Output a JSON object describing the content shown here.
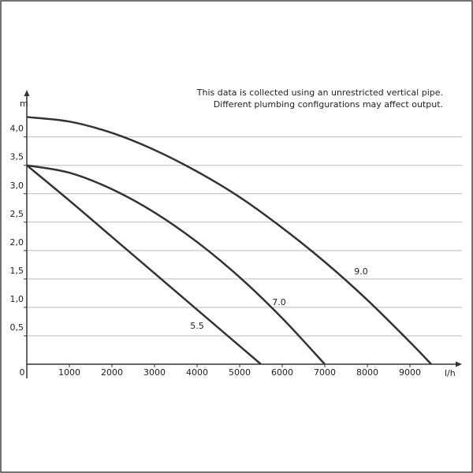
{
  "chart_data": {
    "type": "line",
    "note": [
      "This data is collected using an unrestricted vertical pipe.",
      "Different plumbing configurations may affect output."
    ],
    "y_label": "m",
    "x_label": "l/h",
    "xlim": [
      0,
      10000
    ],
    "ylim": [
      0,
      4.8
    ],
    "xticks": [
      0,
      1000,
      2000,
      3000,
      4000,
      5000,
      6000,
      7000,
      8000,
      9000
    ],
    "yticks": [
      {
        "value": 0.5,
        "label": "0,5"
      },
      {
        "value": 1,
        "label": "1,0"
      },
      {
        "value": 1.5,
        "label": "1,5"
      },
      {
        "value": 2,
        "label": "2,0"
      },
      {
        "value": 2.5,
        "label": "2,5"
      },
      {
        "value": 3,
        "label": "3,0"
      },
      {
        "value": 3.5,
        "label": "3,5"
      },
      {
        "value": 4,
        "label": "4,0"
      }
    ],
    "grid": true,
    "series": [
      {
        "name": "9.0",
        "color": "#333333",
        "x": [
          0,
          1000,
          2000,
          3000,
          4000,
          5000,
          6000,
          7000,
          8000,
          9000,
          9500
        ],
        "values": [
          4.35,
          4.27,
          4.07,
          3.77,
          3.39,
          2.94,
          2.4,
          1.8,
          1.13,
          0.39,
          0
        ]
      },
      {
        "name": "7.0",
        "color": "#333333",
        "x": [
          0,
          1000,
          2000,
          3000,
          4000,
          5000,
          6000,
          7000
        ],
        "values": [
          3.5,
          3.37,
          3.08,
          2.67,
          2.15,
          1.53,
          0.81,
          0
        ]
      },
      {
        "name": "5.5",
        "color": "#333333",
        "x": [
          0,
          1000,
          2000,
          3000,
          4000,
          5000,
          5500
        ],
        "values": [
          3.5,
          2.88,
          2.24,
          1.6,
          0.96,
          0.32,
          0
        ]
      }
    ]
  }
}
